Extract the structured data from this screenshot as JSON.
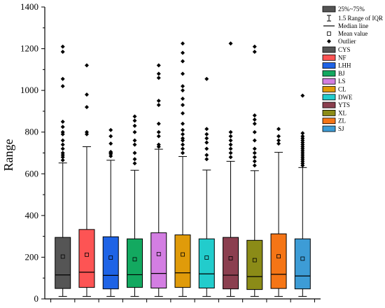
{
  "chart_data": {
    "type": "box",
    "ylabel": "Range",
    "xlabel": "",
    "ylim": [
      0,
      1400
    ],
    "yticks": [
      0,
      200,
      400,
      600,
      800,
      1000,
      1200,
      1400
    ],
    "grid": false,
    "legend_position": "top-right",
    "legend_items": {
      "iqr": "25%~75%",
      "whisker": "1.5 Range of IQR",
      "median": "Median line",
      "mean": "Mean value",
      "outlier": "Outlier"
    },
    "series": [
      {
        "name": "CYS",
        "color": "#555555",
        "q1": 50,
        "median": 115,
        "q3": 295,
        "mean": 203,
        "whisker_low": 12,
        "whisker_high": 652,
        "outliers": [
          665,
          680,
          690,
          700,
          720,
          740,
          760,
          790,
          800,
          825,
          850,
          1020,
          1055,
          1185,
          1210
        ]
      },
      {
        "name": "NF",
        "color": "#fd5454",
        "q1": 55,
        "median": 128,
        "q3": 333,
        "mean": 212,
        "whisker_low": 12,
        "whisker_high": 730,
        "outliers": [
          790,
          800,
          920,
          980,
          1120
        ]
      },
      {
        "name": "LHH",
        "color": "#1e63e6",
        "q1": 48,
        "median": 113,
        "q3": 298,
        "mean": 198,
        "whisker_low": 12,
        "whisker_high": 665,
        "outliers": [
          685,
          695,
          700,
          705,
          745,
          780,
          810
        ]
      },
      {
        "name": "BJ",
        "color": "#13a960",
        "q1": 55,
        "median": 116,
        "q3": 288,
        "mean": 190,
        "whisker_low": 12,
        "whisker_high": 617,
        "outliers": [
          650,
          670,
          700,
          740,
          760,
          800,
          830,
          855,
          875
        ]
      },
      {
        "name": "LS",
        "color": "#d37ee2",
        "q1": 52,
        "median": 122,
        "q3": 317,
        "mean": 215,
        "whisker_low": 12,
        "whisker_high": 718,
        "outliers": [
          730,
          740,
          780,
          800,
          840,
          930,
          950,
          1060,
          1080,
          1120
        ]
      },
      {
        "name": "CL",
        "color": "#e09b0a",
        "q1": 55,
        "median": 125,
        "q3": 307,
        "mean": 213,
        "whisker_low": 12,
        "whisker_high": 683,
        "outliers": [
          700,
          720,
          740,
          760,
          770,
          790,
          810,
          840,
          890,
          930,
          960,
          1000,
          1020,
          1080,
          1140,
          1180,
          1225
        ]
      },
      {
        "name": "DWE",
        "color": "#22cccc",
        "q1": 52,
        "median": 120,
        "q3": 288,
        "mean": 198,
        "whisker_low": 12,
        "whisker_high": 618,
        "outliers": [
          670,
          690,
          720,
          750,
          770,
          790,
          815,
          1055
        ]
      },
      {
        "name": "YTS",
        "color": "#8b3f4f",
        "q1": 48,
        "median": 114,
        "q3": 295,
        "mean": 195,
        "whisker_low": 12,
        "whisker_high": 660,
        "outliers": [
          680,
          700,
          720,
          740,
          760,
          780,
          800,
          1225
        ]
      },
      {
        "name": "XL",
        "color": "#8b8b17",
        "q1": 45,
        "median": 107,
        "q3": 281,
        "mean": 186,
        "whisker_low": 12,
        "whisker_high": 615,
        "outliers": [
          640,
          660,
          680,
          700,
          720,
          760,
          800,
          840,
          860,
          880,
          1185,
          1210
        ]
      },
      {
        "name": "ZL",
        "color": "#f57516",
        "q1": 50,
        "median": 118,
        "q3": 312,
        "mean": 204,
        "whisker_low": 12,
        "whisker_high": 703,
        "outliers": [
          745,
          760,
          780,
          815
        ]
      },
      {
        "name": "SJ",
        "color": "#3d9cd6",
        "q1": 48,
        "median": 110,
        "q3": 288,
        "mean": 193,
        "whisker_low": 12,
        "whisker_high": 630,
        "outliers": [
          640,
          650,
          660,
          670,
          680,
          690,
          700,
          710,
          720,
          730,
          740,
          750,
          760,
          770,
          780,
          795,
          975
        ]
      }
    ]
  }
}
